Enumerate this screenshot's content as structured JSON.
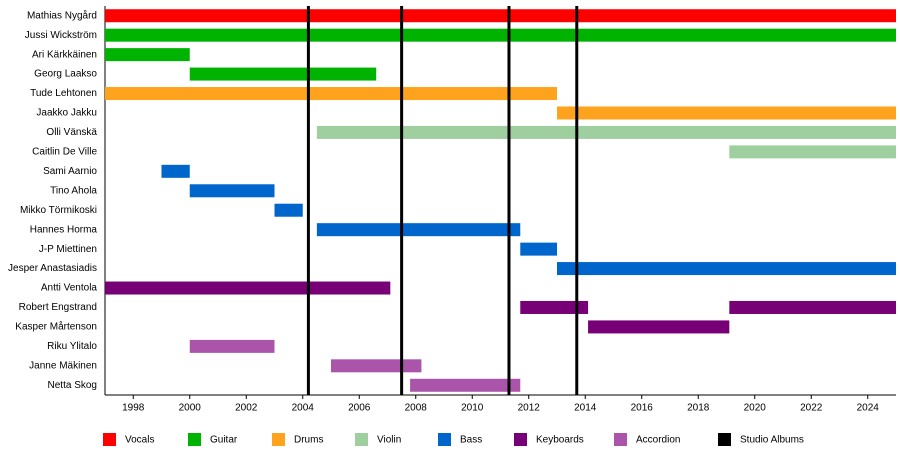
{
  "chart_data": {
    "type": "timeline",
    "categories": [
      "Mathias Nygård",
      "Jussi Wickström",
      "Ari Kärkkäinen",
      "Georg Laakso",
      "Tude Lehtonen",
      "Jaakko Jakku",
      "Olli Vänskä",
      "Caitlin De Ville",
      "Sami Aarnio",
      "Tino Ahola",
      "Mikko Törmikoski",
      "Hannes Horma",
      "J-P Miettinen",
      "Jesper Anastasiadis",
      "Antti Ventola",
      "Robert Engstrand",
      "Kasper Mårtenson",
      "Riku Ylitalo",
      "Janne Mäkinen",
      "Netta Skog"
    ],
    "series": [
      {
        "name": "Vocals",
        "color": "#ff0000",
        "values": [
          [
            [
              1997,
              2025
            ]
          ],
          null,
          null,
          null,
          null,
          null,
          null,
          null,
          null,
          null,
          null,
          null,
          null,
          null,
          null,
          null,
          null,
          null,
          null,
          null
        ]
      },
      {
        "name": "Guitar",
        "color": "#00b300",
        "values": [
          null,
          [
            [
              1997,
              2025
            ]
          ],
          [
            [
              1997,
              2000
            ]
          ],
          [
            [
              2000,
              2006.6
            ]
          ],
          null,
          null,
          null,
          null,
          null,
          null,
          null,
          null,
          null,
          null,
          null,
          null,
          null,
          null,
          null,
          null
        ]
      },
      {
        "name": "Drums",
        "color": "#ffa31f",
        "values": [
          null,
          null,
          null,
          null,
          [
            [
              1997,
              2013
            ]
          ],
          [
            [
              2013,
              2025
            ]
          ],
          null,
          null,
          null,
          null,
          null,
          null,
          null,
          null,
          null,
          null,
          null,
          null,
          null,
          null
        ]
      },
      {
        "name": "Violin",
        "color": "#9fcf9f",
        "values": [
          null,
          null,
          null,
          null,
          null,
          null,
          [
            [
              2004.5,
              2025
            ]
          ],
          [
            [
              2019.1,
              2025
            ]
          ],
          null,
          null,
          null,
          null,
          null,
          null,
          null,
          null,
          null,
          null,
          null,
          null
        ]
      },
      {
        "name": "Bass",
        "color": "#0066cc",
        "values": [
          null,
          null,
          null,
          null,
          null,
          null,
          null,
          null,
          [
            [
              1999,
              2000
            ]
          ],
          [
            [
              2000,
              2003
            ]
          ],
          [
            [
              2003,
              2004
            ]
          ],
          [
            [
              2004.5,
              2011.7
            ]
          ],
          [
            [
              2011.7,
              2013
            ]
          ],
          [
            [
              2013,
              2025
            ]
          ],
          null,
          null,
          null,
          null,
          null,
          null
        ]
      },
      {
        "name": "Keyboards",
        "color": "#770077",
        "values": [
          null,
          null,
          null,
          null,
          null,
          null,
          null,
          null,
          null,
          null,
          null,
          null,
          null,
          null,
          [
            [
              1997,
              2007.1
            ]
          ],
          [
            [
              2011.7,
              2014.1
            ],
            [
              2019.1,
              2025
            ]
          ],
          [
            [
              2014.1,
              2019.1
            ]
          ],
          null,
          null,
          null
        ]
      },
      {
        "name": "Accordion",
        "color": "#aa55aa",
        "values": [
          null,
          null,
          null,
          null,
          null,
          null,
          null,
          null,
          null,
          null,
          null,
          null,
          null,
          null,
          null,
          null,
          null,
          [
            [
              2000,
              2003
            ]
          ],
          [
            [
              2005,
              2008.2
            ]
          ],
          [
            [
              2007.8,
              2011.7
            ]
          ]
        ]
      }
    ],
    "events": {
      "name": "Studio Albums",
      "color": "#000000",
      "values": [
        2004.2,
        2007.5,
        2011.3,
        2013.7
      ]
    },
    "xlim": [
      1997,
      2025
    ],
    "xticks": [
      1998,
      2000,
      2002,
      2004,
      2006,
      2008,
      2010,
      2012,
      2014,
      2016,
      2018,
      2020,
      2022,
      2024
    ]
  }
}
